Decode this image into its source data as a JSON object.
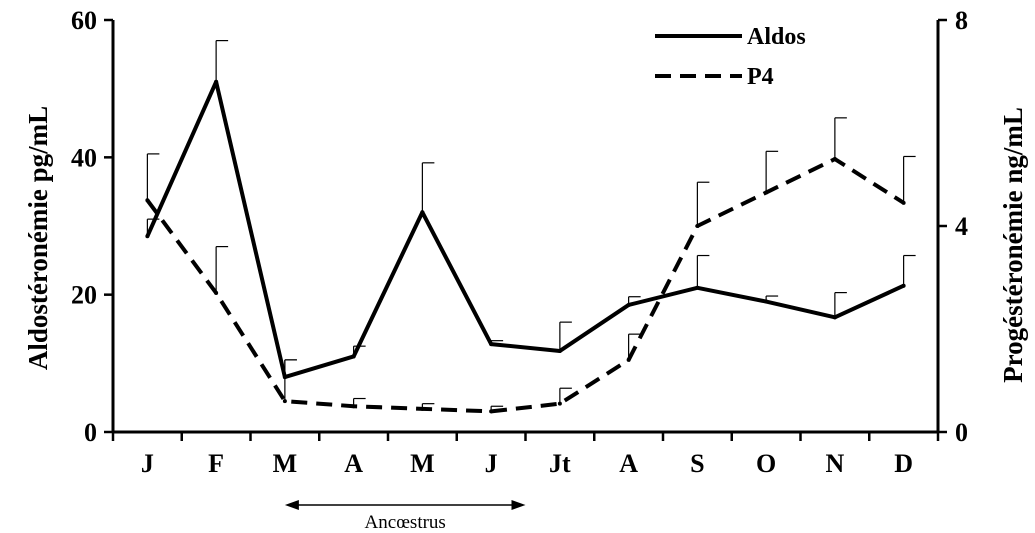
{
  "chart_data": {
    "type": "line",
    "categories": [
      "J",
      "F",
      "M",
      "A",
      "M",
      "J",
      "Jt",
      "A",
      "S",
      "O",
      "N",
      "D"
    ],
    "ylabel": "Aldostéronémie pg/mL",
    "y2label": "Progéstéronémie ng/mL",
    "ylim": [
      0,
      60
    ],
    "yticks": [
      0,
      20,
      40,
      60
    ],
    "y2lim": [
      0,
      8
    ],
    "y2ticks": [
      0,
      4,
      8
    ],
    "grid": false,
    "legend_position": "top-right",
    "series": [
      {
        "name": "Aldos",
        "axis": "left",
        "style": "solid",
        "color": "#000000",
        "values": [
          28.5,
          51,
          8,
          11,
          32,
          12.8,
          11.8,
          18.5,
          21,
          19,
          16.7,
          21.3
        ],
        "error": [
          2.5,
          6,
          2.5,
          1.5,
          7.2,
          0.5,
          4.2,
          1.2,
          4.7,
          0.8,
          3.6,
          4.4
        ]
      },
      {
        "name": "P4",
        "axis": "right",
        "style": "dashed",
        "color": "#000000",
        "values": [
          4.5,
          2.7,
          0.6,
          0.5,
          0.45,
          0.4,
          0.55,
          1.4,
          4.0,
          4.65,
          5.3,
          4.45
        ],
        "error": [
          0.9,
          0.9,
          0.8,
          0.15,
          0.1,
          0.1,
          0.3,
          0.5,
          0.85,
          0.8,
          0.8,
          0.9
        ]
      }
    ],
    "annotation": {
      "label": "Ancœstrus",
      "from_category": 2.5,
      "to_category": 6
    }
  }
}
